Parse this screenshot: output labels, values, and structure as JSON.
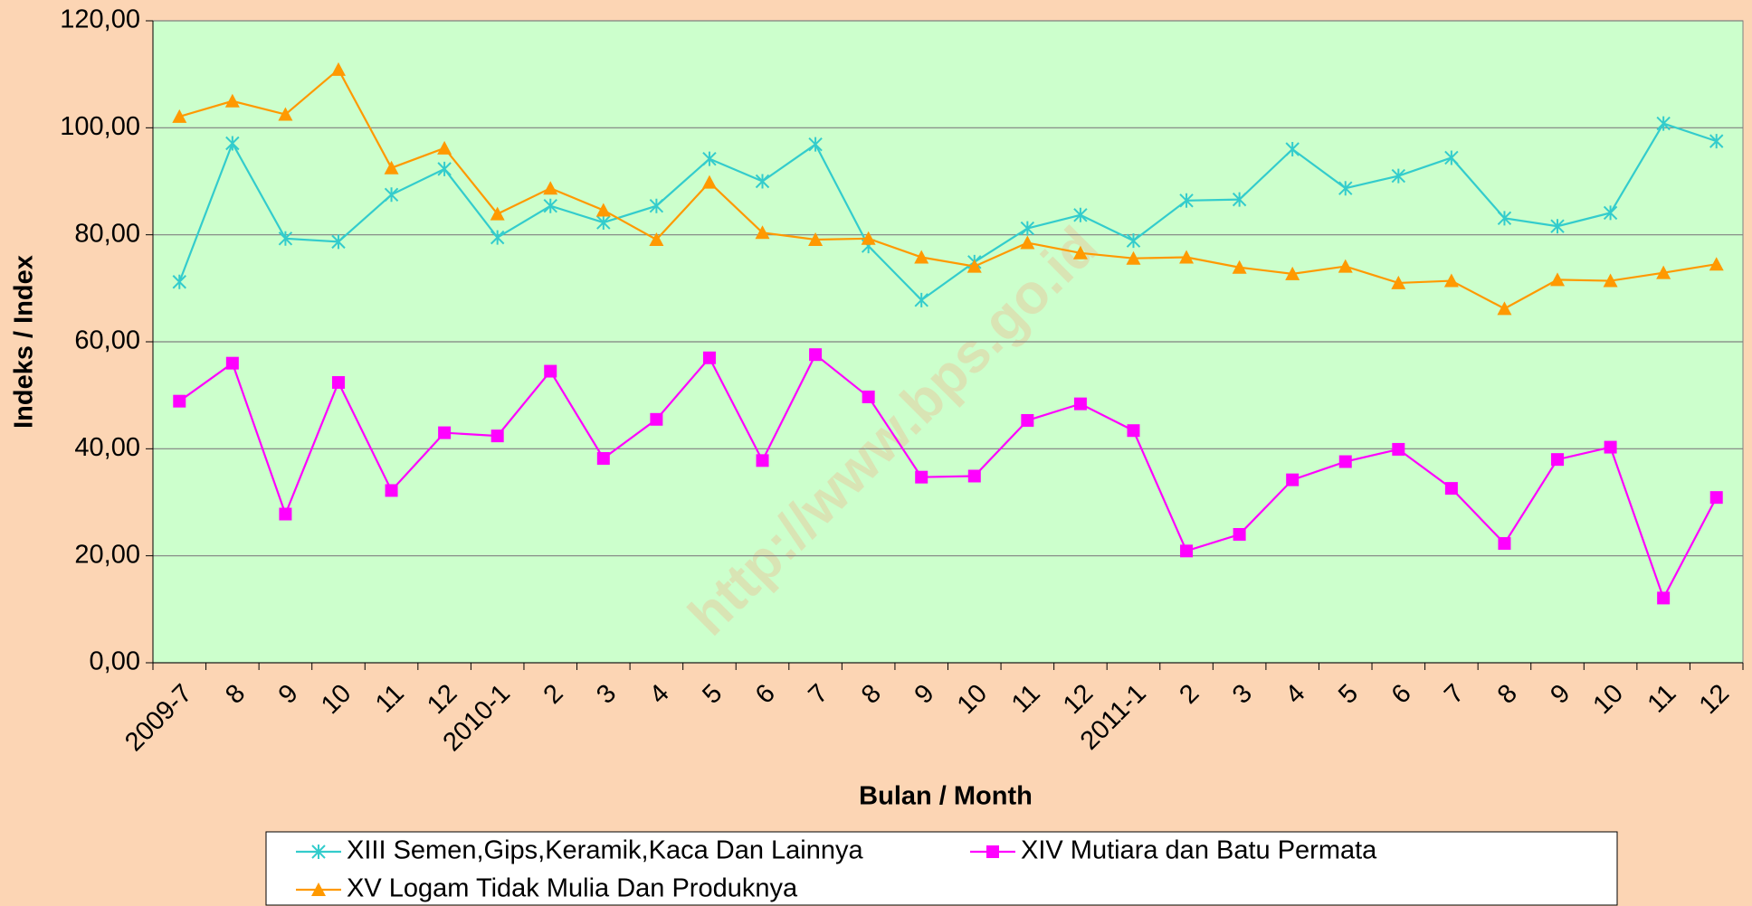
{
  "chart_data": {
    "type": "line",
    "watermark": "http://www.bps.go.id",
    "x_label": "Bulan / Month",
    "y_label": "Indeks / Index",
    "categories": [
      "2009-7",
      "8",
      "9",
      "10",
      "11",
      "12",
      "2010-1",
      "2",
      "3",
      "4",
      "5",
      "6",
      "7",
      "8",
      "9",
      "10",
      "11",
      "12",
      "2011-1",
      "2",
      "3",
      "4",
      "5",
      "6",
      "7",
      "8",
      "9",
      "10",
      "11",
      "12"
    ],
    "series": [
      {
        "name": "XIII Semen,Gips,Keramik,Kaca Dan Lainnya",
        "color": "#33CCCC",
        "marker": "asterisk",
        "values": [
          71.2,
          97.1,
          79.3,
          78.7,
          87.5,
          92.3,
          79.5,
          85.4,
          82.3,
          85.4,
          94.2,
          90.0,
          96.9,
          77.9,
          67.8,
          74.9,
          81.2,
          83.7,
          78.9,
          86.4,
          86.6,
          96.0,
          88.7,
          91.0,
          94.4,
          83.1,
          81.6,
          84.1,
          100.8,
          97.5
        ]
      },
      {
        "name": "XIV Mutiara dan Batu Permata",
        "color": "#FF00FF",
        "marker": "square",
        "values": [
          48.9,
          56.0,
          27.8,
          52.4,
          32.2,
          43.0,
          42.4,
          54.5,
          38.2,
          45.5,
          57.0,
          37.8,
          57.6,
          49.7,
          34.7,
          34.9,
          45.3,
          48.4,
          43.4,
          20.9,
          24.0,
          34.2,
          37.6,
          39.9,
          32.6,
          22.3,
          38.0,
          40.3,
          12.1,
          30.9
        ]
      },
      {
        "name": "XV Logam Tidak Mulia Dan Produknya",
        "color": "#FF9900",
        "marker": "triangle",
        "values": [
          102.1,
          105.0,
          102.5,
          110.9,
          92.5,
          96.2,
          83.9,
          88.7,
          84.6,
          79.1,
          89.8,
          80.4,
          79.1,
          79.3,
          75.8,
          74.1,
          78.5,
          76.6,
          75.6,
          75.8,
          73.9,
          72.7,
          74.1,
          71.0,
          71.4,
          66.2,
          71.6,
          71.4,
          72.9,
          74.5
        ]
      }
    ],
    "ylim": [
      0,
      120
    ],
    "yticks": [
      {
        "value": 0,
        "label": "0,00"
      },
      {
        "value": 20,
        "label": "20,00"
      },
      {
        "value": 40,
        "label": "40,00"
      },
      {
        "value": 60,
        "label": "60,00"
      },
      {
        "value": 80,
        "label": "80,00"
      },
      {
        "value": 100,
        "label": "100,00"
      },
      {
        "value": 120,
        "label": "120,00"
      }
    ],
    "grid": true,
    "legend": "bottom"
  }
}
